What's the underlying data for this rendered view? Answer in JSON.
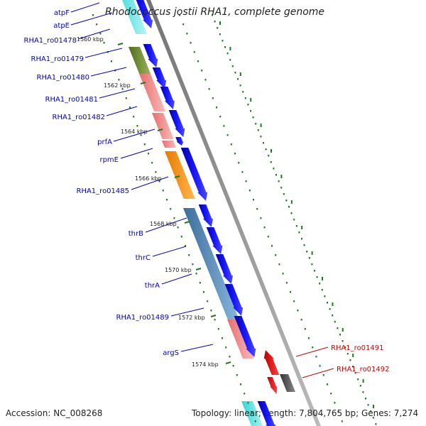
{
  "title": "Rhodococcus jostii RHA1, complete genome",
  "footer": {
    "accession": "Accession: NC_008268",
    "summary": "Topology: linear; Length: 7,804,765 bp; Genes: 7,274"
  },
  "colors": {
    "cds": "#0000ee",
    "cds_red": "#ee0000",
    "cds_grey": "#555555",
    "scale_dots": "#227722",
    "label_blue": "#0000cc",
    "label_red": "#cc0000"
  },
  "kbp_ticks": [
    "1560 kbp",
    "1562 kbp",
    "1564 kbp",
    "1566 kbp",
    "1568 kbp",
    "1570 kbp",
    "1572 kbp",
    "1574 kbp"
  ],
  "gene_labels_left": [
    "atpF",
    "atpE",
    "RHA1_ro01478",
    "RHA1_ro01479",
    "RHA1_ro01480",
    "RHA1_ro01481",
    "RHA1_ro01482",
    "prfA",
    "rpmE",
    "RHA1_ro01485",
    "thrB",
    "thrC",
    "thrA",
    "RHA1_ro01489",
    "argS"
  ],
  "gene_labels_right": [
    "RHA1_ro01491",
    "RHA1_ro01492"
  ]
}
